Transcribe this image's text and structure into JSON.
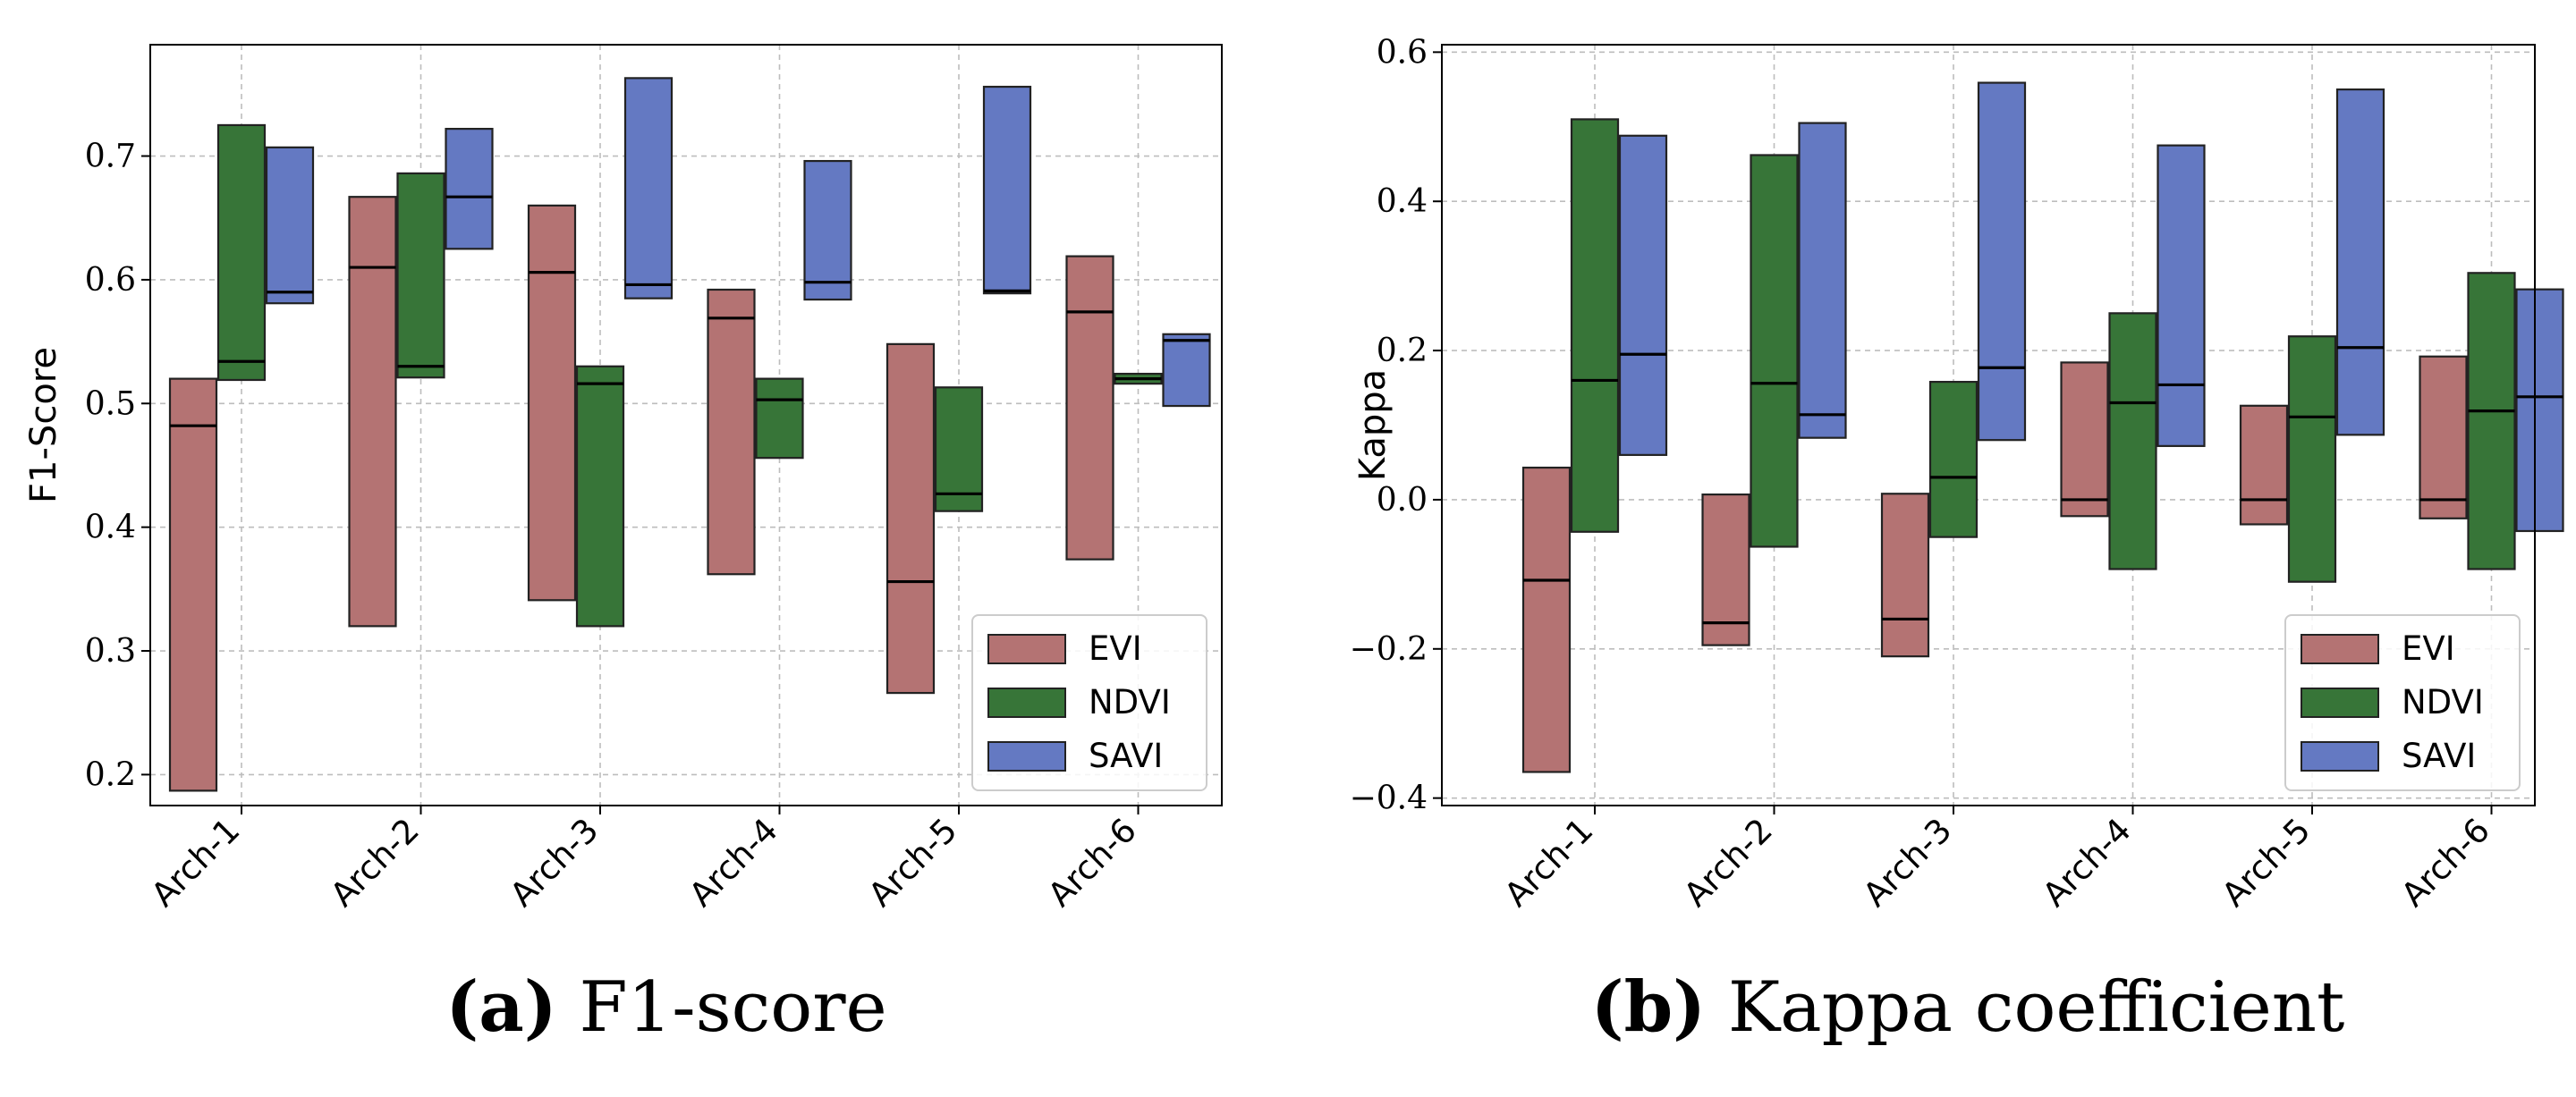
{
  "colors": {
    "EVI": "#b47373",
    "NDVI": "#377538",
    "SAVI": "#6479c2",
    "edge": "#222222",
    "grid": "#bdbdbd"
  },
  "legend": [
    "EVI",
    "NDVI",
    "SAVI"
  ],
  "chart_data": [
    {
      "type": "bar",
      "subtype": "floating-range with median line",
      "caption_letter": "(a)",
      "caption_text": " F1-score",
      "ylabel": "F1-Score",
      "xlabel": "",
      "categories": [
        "Arch-1",
        "Arch-2",
        "Arch-3",
        "Arch-4",
        "Arch-5",
        "Arch-6"
      ],
      "ylim": [
        0.175,
        0.79
      ],
      "yticks": [
        0.2,
        0.3,
        0.4,
        0.5,
        0.6,
        0.7
      ],
      "ytick_labels": [
        "0.2",
        "0.3",
        "0.4",
        "0.5",
        "0.6",
        "0.7"
      ],
      "grid": true,
      "legend_position": "lower-right",
      "series": [
        {
          "name": "EVI",
          "low": [
            0.187,
            0.32,
            0.341,
            0.362,
            0.266,
            0.374
          ],
          "high": [
            0.52,
            0.667,
            0.66,
            0.592,
            0.548,
            0.619
          ],
          "median": [
            0.482,
            0.61,
            0.606,
            0.569,
            0.356,
            0.574
          ]
        },
        {
          "name": "NDVI",
          "low": [
            0.519,
            0.521,
            0.32,
            0.456,
            0.413,
            0.516
          ],
          "high": [
            0.725,
            0.686,
            0.53,
            0.52,
            0.513,
            0.524
          ],
          "median": [
            0.534,
            0.53,
            0.516,
            0.503,
            0.427,
            0.52
          ]
        },
        {
          "name": "SAVI",
          "low": [
            0.581,
            0.625,
            0.585,
            0.584,
            0.589,
            0.498
          ],
          "high": [
            0.707,
            0.722,
            0.763,
            0.696,
            0.756,
            0.556
          ],
          "median": [
            0.59,
            0.667,
            0.596,
            0.598,
            0.591,
            0.551
          ]
        }
      ]
    },
    {
      "type": "bar",
      "subtype": "floating-range with median line",
      "caption_letter": "(b)",
      "caption_text": " Kappa coefficient",
      "ylabel": "Kappa",
      "xlabel": "",
      "categories": [
        "Arch-1",
        "Arch-2",
        "Arch-3",
        "Arch-4",
        "Arch-5",
        "Arch-6"
      ],
      "ylim": [
        -0.41,
        0.61
      ],
      "yticks": [
        -0.4,
        -0.2,
        0.0,
        0.2,
        0.4,
        0.6
      ],
      "ytick_labels": [
        "−0.4",
        "−0.2",
        "0.0",
        "0.2",
        "0.4",
        "0.6"
      ],
      "grid": true,
      "legend_position": "lower-right",
      "series": [
        {
          "name": "EVI",
          "low": [
            -0.365,
            -0.195,
            -0.21,
            -0.022,
            -0.033,
            -0.025
          ],
          "high": [
            0.043,
            0.007,
            0.008,
            0.184,
            0.126,
            0.192
          ],
          "median": [
            -0.108,
            -0.165,
            -0.16,
            0.0,
            0.0,
            0.0
          ]
        },
        {
          "name": "NDVI",
          "low": [
            -0.043,
            -0.063,
            -0.05,
            -0.093,
            -0.11,
            -0.093
          ],
          "high": [
            0.51,
            0.462,
            0.158,
            0.25,
            0.219,
            0.304
          ],
          "median": [
            0.16,
            0.156,
            0.03,
            0.13,
            0.111,
            0.119
          ]
        },
        {
          "name": "SAVI",
          "low": [
            0.06,
            0.083,
            0.08,
            0.072,
            0.087,
            -0.042
          ],
          "high": [
            0.488,
            0.505,
            0.559,
            0.475,
            0.55,
            0.282
          ],
          "median": [
            0.195,
            0.114,
            0.177,
            0.154,
            0.204,
            0.138
          ]
        }
      ]
    }
  ]
}
